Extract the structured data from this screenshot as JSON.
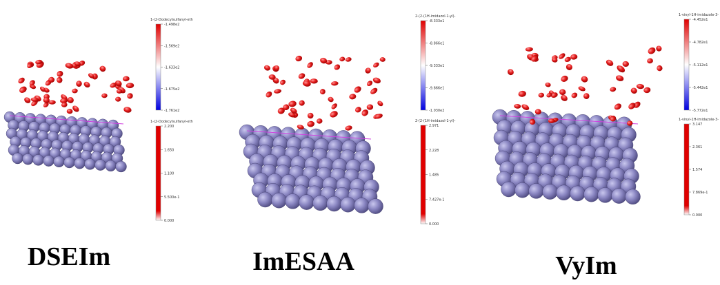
{
  "panels": [
    {
      "label": "DSEIm",
      "top_bar": {
        "title": "1-(2-Dodecylsulfanyl-eth",
        "ticks": [
          "-1.498e2",
          "-1.569e2",
          "-1.633e2",
          "-1.675e2",
          "-1.761e2"
        ]
      },
      "bottom_bar": {
        "title": "1-(2-Dodecylsulfanyl-eth",
        "ticks": [
          "2.200",
          "1.650",
          "1.100",
          "5.500e-1",
          "0.000"
        ]
      }
    },
    {
      "label": "ImESAA",
      "top_bar": {
        "title": "2-(2-(1H-imidazol-1-yl)-",
        "ticks": [
          "-8.333e1",
          "-8.866e1",
          "-9.333e1",
          "-9.866e1",
          "-1.030e2"
        ]
      },
      "bottom_bar": {
        "title": "2-(2-(1H-imidazol-1-yl)-",
        "ticks": [
          "2.971",
          "2.228",
          "1.485",
          "7.427e-1",
          "0.000"
        ]
      }
    },
    {
      "label": "VyIm",
      "top_bar": {
        "title": "1-vinyl-1H-imidazole-3-",
        "ticks": [
          "-4.452e1",
          "-4.782e1",
          "-5.112e1",
          "-5.442e1",
          "-5.772e1"
        ]
      },
      "bottom_bar": {
        "title": "1-vinyl-1H-imidazole-3-",
        "ticks": [
          "3.147",
          "2.361",
          "1.574",
          "7.869e-1",
          "0.000"
        ]
      }
    }
  ]
}
